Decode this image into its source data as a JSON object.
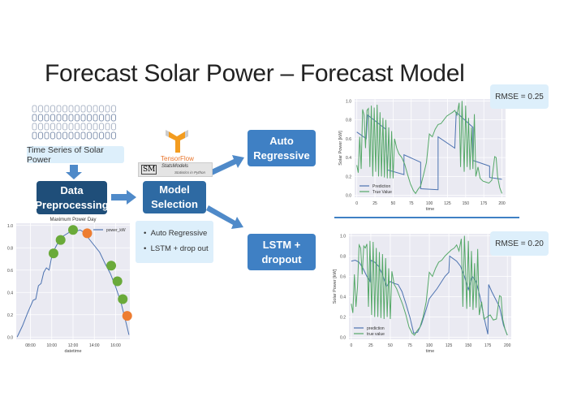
{
  "title": "Forecast Solar Power – Forecast Model",
  "flow": {
    "input_label": "Time Series of Solar Power",
    "preprocessing_label": "Data Preprocessing",
    "model_selection_label": "Model Selection",
    "tensorflow_label": "TensorFlow",
    "statsmodels_label": "StatsModels",
    "statsmodels_sub": "Statistics in Python",
    "statsmodels_mark": "SM",
    "models": [
      "Auto Regressive",
      "LSTM + drop out"
    ],
    "auto_regressive_label": "Auto Regressive",
    "lstm_label": "LSTM + dropout"
  },
  "colors": {
    "dark_blue": "#1f4e79",
    "mid_blue": "#2e6aa3",
    "box_blue": "#3f80c4",
    "arrow": "#4f8ac9",
    "light_box": "#ddeffb",
    "prediction": "#4c72b0",
    "true_value": "#55a868",
    "marker_green": "#6aaa3a",
    "marker_orange": "#ed7d31",
    "plot_bg": "#eaeaf2"
  },
  "rmse": {
    "ar": "RMSE = 0.25",
    "lstm": "RMSE = 0.20"
  },
  "chart_data": [
    {
      "type": "line",
      "title": "Maximum Power Day",
      "xlabel": "datetime",
      "ylabel": "",
      "xticks": [
        "08:00",
        "10:00",
        "12:00",
        "14:00",
        "16:00"
      ],
      "yticks": [
        "0.0",
        "0.2",
        "0.4",
        "0.6",
        "0.8",
        "1.0"
      ],
      "ylim": [
        0,
        1
      ],
      "grid": true,
      "legend": "top-right",
      "series": [
        {
          "name": "power_kW",
          "x": [
            "06:45",
            "07:15",
            "07:45",
            "08:15",
            "08:30",
            "08:45",
            "09:00",
            "09:15",
            "09:30",
            "09:45",
            "10:00",
            "10:20",
            "10:40",
            "11:00",
            "11:30",
            "12:00",
            "12:20",
            "12:40",
            "13:00",
            "13:30",
            "14:00",
            "14:30",
            "15:00",
            "15:30",
            "16:00",
            "16:30",
            "17:00",
            "17:15"
          ],
          "y": [
            0.0,
            0.1,
            0.22,
            0.33,
            0.34,
            0.46,
            0.48,
            0.58,
            0.62,
            0.6,
            0.72,
            0.8,
            0.86,
            0.9,
            0.93,
            0.96,
            0.95,
            0.96,
            0.94,
            0.88,
            0.82,
            0.76,
            0.66,
            0.57,
            0.45,
            0.31,
            0.12,
            0.02
          ]
        }
      ],
      "markers": {
        "green": [
          [
            "10:10",
            0.75
          ],
          [
            "10:50",
            0.87
          ],
          [
            "12:00",
            0.96
          ],
          [
            "15:35",
            0.64
          ],
          [
            "16:10",
            0.5
          ],
          [
            "16:40",
            0.34
          ]
        ],
        "orange": [
          [
            "13:20",
            0.93
          ],
          [
            "17:05",
            0.19
          ]
        ]
      }
    },
    {
      "type": "line",
      "xlabel": "time",
      "ylabel": "Solar Power [kW]",
      "xticks": [
        0,
        25,
        50,
        75,
        100,
        125,
        150,
        175,
        200
      ],
      "yticks": [
        "0.0",
        "0.2",
        "0.4",
        "0.6",
        "0.8",
        "1.0"
      ],
      "xlim": [
        -3,
        205
      ],
      "ylim": [
        -0.02,
        1.02
      ],
      "grid": true,
      "legend": "lower-left",
      "series": [
        {
          "name": "Prediction",
          "x": [
            0,
            13,
            15,
            40,
            42,
            65,
            65,
            88,
            88,
            112,
            112,
            135,
            137,
            160,
            160,
            183,
            183,
            200
          ],
          "y": [
            0.67,
            0.6,
            0.85,
            0.7,
            0.27,
            0.22,
            0.43,
            0.35,
            0.07,
            0.06,
            0.62,
            0.5,
            0.88,
            0.72,
            0.37,
            0.31,
            0.19,
            0.17
          ]
        },
        {
          "name": "True Value",
          "x": [
            0,
            2,
            4,
            6,
            8,
            10,
            12,
            14,
            16,
            18,
            20,
            22,
            24,
            26,
            28,
            30,
            32,
            34,
            36,
            38,
            40,
            42,
            44,
            46,
            48,
            50,
            52,
            55,
            58,
            62,
            66,
            70,
            74,
            78,
            81,
            84,
            88,
            92,
            96,
            100,
            104,
            108,
            112,
            116,
            120,
            124,
            128,
            132,
            135,
            138,
            141,
            143,
            145,
            148,
            150,
            152,
            154,
            156,
            158,
            160,
            162,
            164,
            167,
            170,
            174,
            178,
            182,
            186,
            190,
            192,
            194,
            197,
            200
          ],
          "y": [
            0.32,
            0.24,
            0.62,
            0.28,
            0.91,
            0.85,
            0.5,
            0.9,
            0.92,
            0.3,
            0.95,
            0.2,
            0.93,
            0.25,
            0.96,
            0.2,
            0.88,
            0.2,
            0.82,
            0.19,
            0.8,
            0.18,
            0.72,
            0.18,
            0.68,
            0.18,
            0.6,
            0.5,
            0.44,
            0.4,
            0.33,
            0.22,
            0.12,
            0.05,
            0.02,
            0.06,
            0.1,
            0.22,
            0.35,
            0.65,
            0.62,
            0.7,
            0.75,
            0.76,
            0.8,
            0.84,
            0.86,
            0.88,
            0.9,
            0.85,
            0.98,
            0.3,
            1.0,
            0.25,
            0.95,
            0.3,
            0.82,
            0.27,
            0.72,
            0.28,
            0.86,
            0.2,
            0.3,
            0.18,
            0.15,
            0.14,
            0.13,
            0.16,
            0.41,
            0.4,
            0.2,
            0.08,
            0.02
          ]
        }
      ]
    },
    {
      "type": "line",
      "xlabel": "time",
      "ylabel": "Solar Power [kW]",
      "xticks": [
        0,
        25,
        50,
        75,
        100,
        125,
        150,
        175,
        200
      ],
      "yticks": [
        "0.0",
        "0.2",
        "0.4",
        "0.6",
        "0.8",
        "1.0"
      ],
      "xlim": [
        -3,
        205
      ],
      "ylim": [
        -0.02,
        1.02
      ],
      "grid": true,
      "legend": "lower-left",
      "series": [
        {
          "name": "prediction",
          "x": [
            0,
            5,
            10,
            15,
            20,
            24,
            25,
            30,
            35,
            40,
            45,
            50,
            55,
            60,
            65,
            70,
            75,
            80,
            85,
            90,
            95,
            100,
            110,
            120,
            125,
            126,
            135,
            140,
            145,
            150,
            155,
            160,
            165,
            170,
            175,
            176,
            180,
            190,
            195,
            200
          ],
          "y": [
            0.75,
            0.76,
            0.74,
            0.68,
            0.6,
            0.55,
            0.76,
            0.74,
            0.7,
            0.62,
            0.5,
            0.55,
            0.53,
            0.52,
            0.45,
            0.33,
            0.2,
            0.04,
            0.05,
            0.13,
            0.25,
            0.38,
            0.48,
            0.6,
            0.64,
            0.8,
            0.75,
            0.7,
            0.6,
            0.47,
            0.6,
            0.55,
            0.4,
            0.2,
            0.03,
            0.52,
            0.45,
            0.3,
            0.12,
            0.02
          ]
        },
        {
          "name": "true value",
          "x": [
            0,
            2,
            4,
            6,
            8,
            10,
            12,
            14,
            16,
            18,
            20,
            22,
            24,
            26,
            28,
            30,
            32,
            34,
            36,
            38,
            40,
            42,
            44,
            46,
            48,
            50,
            52,
            55,
            58,
            62,
            66,
            70,
            74,
            78,
            81,
            84,
            88,
            92,
            96,
            100,
            104,
            108,
            112,
            116,
            120,
            124,
            128,
            132,
            135,
            138,
            141,
            143,
            145,
            148,
            150,
            152,
            154,
            156,
            158,
            160,
            162,
            164,
            167,
            170,
            174,
            178,
            182,
            186,
            190,
            192,
            194,
            197,
            200
          ],
          "y": [
            0.33,
            0.24,
            0.62,
            0.3,
            0.5,
            0.91,
            0.88,
            0.62,
            0.9,
            0.88,
            0.92,
            0.3,
            0.95,
            0.22,
            0.94,
            0.2,
            0.88,
            0.2,
            0.84,
            0.19,
            0.82,
            0.18,
            0.78,
            0.2,
            0.68,
            0.18,
            0.65,
            0.52,
            0.48,
            0.4,
            0.32,
            0.22,
            0.1,
            0.04,
            0.02,
            0.06,
            0.1,
            0.2,
            0.35,
            0.64,
            0.6,
            0.68,
            0.74,
            0.76,
            0.8,
            0.83,
            0.86,
            0.88,
            0.91,
            0.85,
            0.97,
            0.3,
            1.0,
            0.28,
            0.95,
            0.3,
            0.85,
            0.27,
            0.73,
            0.29,
            0.87,
            0.22,
            0.35,
            0.18,
            0.2,
            0.22,
            0.17,
            0.18,
            0.41,
            0.4,
            0.18,
            0.08,
            0.02
          ]
        }
      ]
    }
  ]
}
